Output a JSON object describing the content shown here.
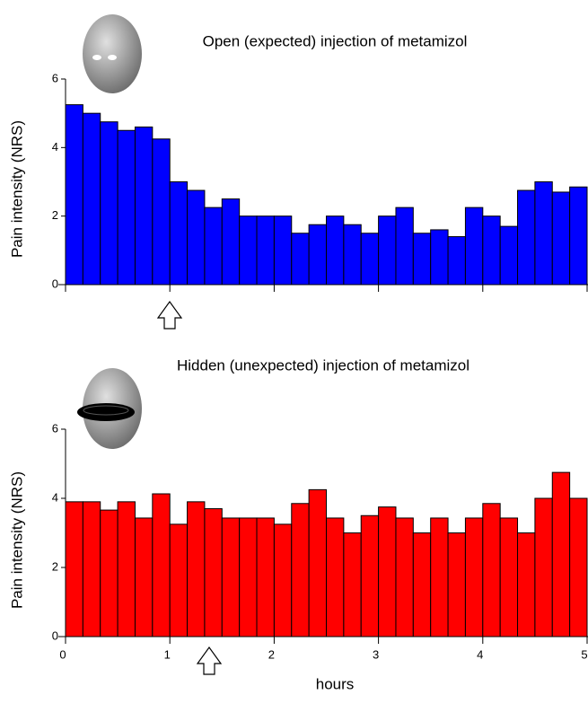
{
  "chart_data": [
    {
      "type": "histogram",
      "title": "Open (expected) injection of metamizol",
      "y_label": "Pain intensity (NRS)",
      "color": "#0000ff",
      "bins": [
        0,
        0.1667,
        0.3333,
        0.5,
        0.6667,
        0.8333,
        1,
        1.1667,
        1.3333,
        1.5,
        1.6667,
        1.8333,
        2,
        2.1667,
        2.3333,
        2.5,
        2.6667,
        2.8333,
        3,
        3.1667,
        3.3333,
        3.5,
        3.6667,
        3.8333,
        4,
        4.1667,
        4.3333,
        4.5,
        4.6667,
        4.8333,
        5
      ],
      "values": [
        5.25,
        5.0,
        4.75,
        4.5,
        4.6,
        4.25,
        3.0,
        2.75,
        2.25,
        2.5,
        2.0,
        2.0,
        2.0,
        1.5,
        1.75,
        2.0,
        1.75,
        1.5,
        2.0,
        2.25,
        1.5,
        1.6,
        1.4,
        2.25,
        2.0,
        1.7,
        2.75,
        3.0,
        2.7,
        2.85
      ],
      "xlim": [
        0,
        5
      ],
      "ylim": [
        0,
        6
      ],
      "yticks": [
        0,
        2,
        4,
        6
      ]
    },
    {
      "type": "histogram",
      "title": "Hidden (unexpected) injection of metamizol",
      "y_label": "Pain intensity (NRS)",
      "x_label": "hours",
      "color": "#ff0000",
      "bins": [
        0,
        0.1667,
        0.3333,
        0.5,
        0.6667,
        0.8333,
        1,
        1.1667,
        1.3333,
        1.5,
        1.6667,
        1.8333,
        2,
        2.1667,
        2.3333,
        2.5,
        2.6667,
        2.8333,
        3,
        3.1667,
        3.3333,
        3.5,
        3.6667,
        3.8333,
        4,
        4.1667,
        4.3333,
        4.5,
        4.6667,
        4.8333,
        5
      ],
      "values": [
        3.9,
        3.9,
        3.66,
        3.9,
        3.43,
        4.13,
        3.25,
        3.9,
        3.7,
        3.43,
        3.43,
        3.43,
        3.25,
        3.85,
        4.25,
        3.43,
        3.0,
        3.5,
        3.75,
        3.43,
        3.0,
        3.43,
        3.0,
        3.43,
        3.85,
        3.43,
        3.0,
        4.0,
        4.75,
        4.0
      ],
      "xlim": [
        0,
        5
      ],
      "ylim": [
        0,
        6
      ],
      "yticks": [
        0,
        2,
        4,
        6
      ],
      "xticks": [
        0,
        1,
        2,
        3,
        4,
        5
      ]
    }
  ]
}
